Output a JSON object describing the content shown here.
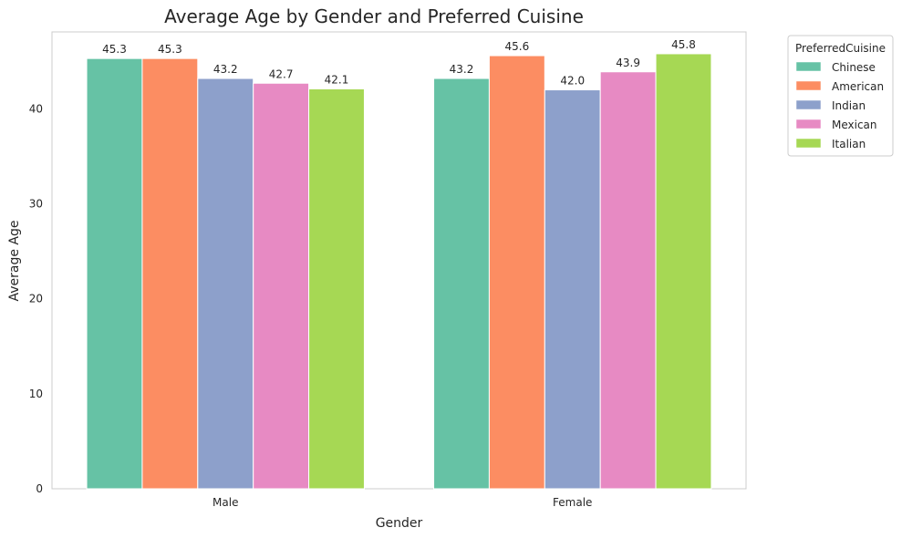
{
  "chart_data": {
    "type": "bar",
    "title": "Average Age by Gender and Preferred Cuisine",
    "xlabel": "Gender",
    "ylabel": "Average Age",
    "categories": [
      "Male",
      "Female"
    ],
    "series": [
      {
        "name": "Chinese",
        "values": [
          45.3,
          43.2
        ],
        "color": "#66c2a5",
        "labels": [
          "45.3",
          "43.2"
        ]
      },
      {
        "name": "American",
        "values": [
          45.3,
          45.6
        ],
        "color": "#fc8d62",
        "labels": [
          "45.3",
          "45.6"
        ]
      },
      {
        "name": "Indian",
        "values": [
          43.2,
          42.0
        ],
        "color": "#8da0cb",
        "labels": [
          "43.2",
          "42.0"
        ]
      },
      {
        "name": "Mexican",
        "values": [
          42.7,
          43.9
        ],
        "color": "#e78ac3",
        "labels": [
          "42.7",
          "43.9"
        ]
      },
      {
        "name": "Italian",
        "values": [
          42.1,
          45.8
        ],
        "color": "#a6d854",
        "labels": [
          "42.1",
          "45.8"
        ]
      }
    ],
    "ylim": [
      0,
      48.1
    ],
    "yticks": [
      0,
      10,
      20,
      30,
      40
    ],
    "grid": false,
    "legend": {
      "title": "PreferredCuisine",
      "placement": "outside-top-right"
    }
  }
}
